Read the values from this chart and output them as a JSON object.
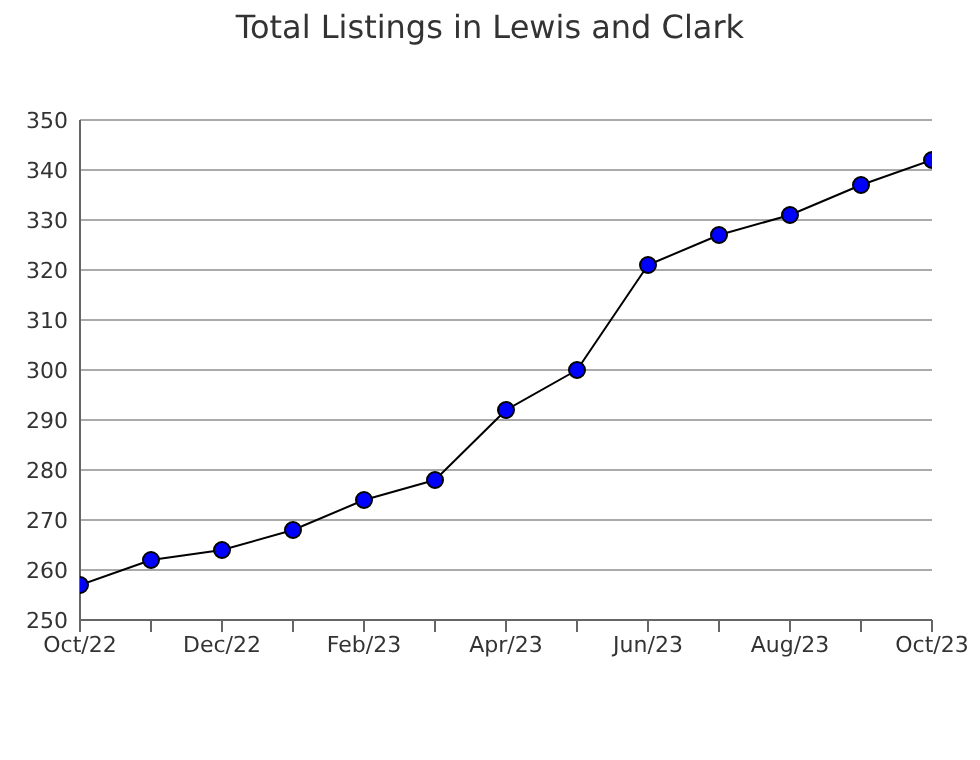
{
  "chart_data": {
    "type": "line",
    "title": "Total Listings in Lewis and Clark",
    "categories": [
      "Oct/22",
      null,
      "Dec/22",
      null,
      "Feb/23",
      null,
      "Apr/23",
      null,
      "Jun/23",
      null,
      "Aug/23",
      null,
      "Oct/23"
    ],
    "series": [
      {
        "color": "#0000ff",
        "values": [
          257,
          262,
          264,
          268,
          274,
          278,
          292,
          300,
          321,
          327,
          331,
          337,
          342
        ]
      }
    ],
    "ylim": [
      250,
      350
    ],
    "yticks": [
      250,
      260,
      270,
      280,
      290,
      300,
      310,
      320,
      330,
      340,
      350
    ],
    "grid": "y",
    "marker": "circle",
    "legend": false
  }
}
